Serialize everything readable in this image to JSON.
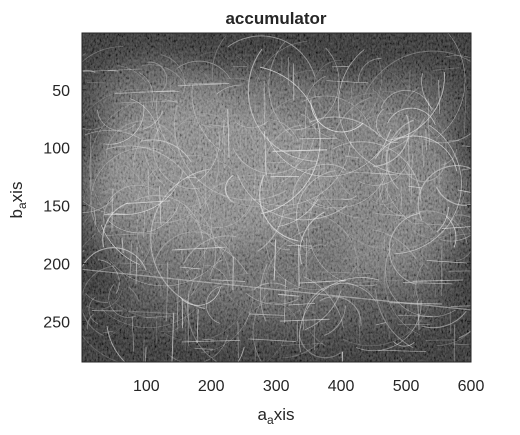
{
  "chart_data": {
    "type": "heatmap",
    "title": "accumulator",
    "xlabel": "a_axis",
    "xlabel_parts": {
      "base": "a",
      "sub": "a",
      "rest": "xis"
    },
    "ylabel": "b_axis",
    "ylabel_parts": {
      "base": "b",
      "sub": "a",
      "rest": "xis"
    },
    "xlim": [
      1,
      600
    ],
    "ylim": [
      1,
      285
    ],
    "y_reversed": true,
    "xticks": [
      100,
      200,
      300,
      400,
      500,
      600
    ],
    "yticks": [
      50,
      100,
      150,
      200,
      250
    ],
    "colormap": "gray",
    "grid": false,
    "legend": "none"
  },
  "colors": {
    "background": "#ffffff",
    "axis": "#262626",
    "image_dark": "#141414",
    "image_mid": "#6e6e6e",
    "image_bright": "#e6e6e6"
  }
}
